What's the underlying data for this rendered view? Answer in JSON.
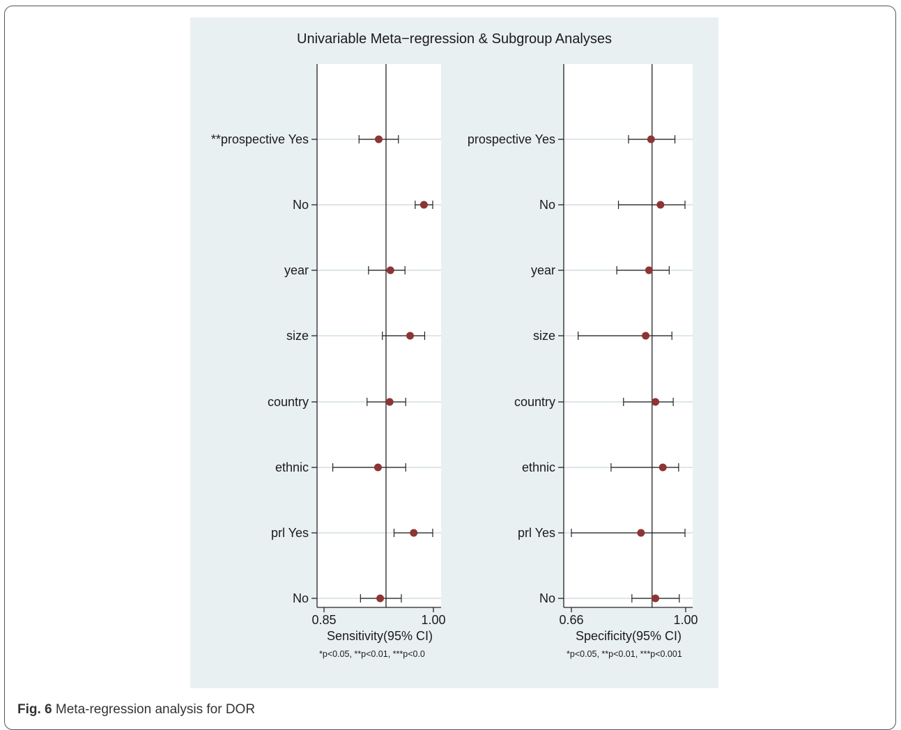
{
  "figure": {
    "caption_label": "Fig. 6",
    "caption_text": "Meta-regression analysis for DOR"
  },
  "chart_data": {
    "type": "scatter",
    "subtype": "forest",
    "title": "Univariable Meta−regression & Subgroup Analyses",
    "colors": {
      "background": "#e9f0f2",
      "marker": "#8d3434",
      "line": "#222222",
      "grid": "#dde6e9"
    },
    "panels": [
      {
        "xlabel": "Sensitivity(95% CI)",
        "xlim": [
          0.85,
          1.0
        ],
        "xticks": [
          "0.85",
          "1.00"
        ],
        "reference": 0.935,
        "footnote": "*p<0.05, **p<0.01, ***p<0.0",
        "rows": [
          {
            "label": "**prospective Yes",
            "est": 0.925,
            "lo": 0.898,
            "hi": 0.952
          },
          {
            "label": "No",
            "est": 0.987,
            "lo": 0.975,
            "hi": 0.999
          },
          {
            "label": "year",
            "est": 0.941,
            "lo": 0.911,
            "hi": 0.961
          },
          {
            "label": "size",
            "est": 0.968,
            "lo": 0.93,
            "hi": 0.988
          },
          {
            "label": "country",
            "est": 0.94,
            "lo": 0.909,
            "hi": 0.962
          },
          {
            "label": "ethnic",
            "est": 0.924,
            "lo": 0.862,
            "hi": 0.962
          },
          {
            "label": "prl Yes",
            "est": 0.973,
            "lo": 0.946,
            "hi": 0.999
          },
          {
            "label": "No",
            "est": 0.927,
            "lo": 0.9,
            "hi": 0.956
          }
        ]
      },
      {
        "xlabel": "Specificity(95% CI)",
        "xlim": [
          0.66,
          1.0
        ],
        "xticks": [
          "0.66",
          "1.00"
        ],
        "reference": 0.9,
        "footnote": "*p<0.05, **p<0.01, ***p<0.001",
        "rows": [
          {
            "label": "prospective Yes",
            "est": 0.897,
            "lo": 0.83,
            "hi": 0.968
          },
          {
            "label": "No",
            "est": 0.925,
            "lo": 0.8,
            "hi": 0.998
          },
          {
            "label": "year",
            "est": 0.891,
            "lo": 0.795,
            "hi": 0.951
          },
          {
            "label": "size",
            "est": 0.881,
            "lo": 0.68,
            "hi": 0.959
          },
          {
            "label": "country",
            "est": 0.91,
            "lo": 0.815,
            "hi": 0.963
          },
          {
            "label": "ethnic",
            "est": 0.932,
            "lo": 0.778,
            "hi": 0.979
          },
          {
            "label": "prl Yes",
            "est": 0.867,
            "lo": 0.66,
            "hi": 0.998
          },
          {
            "label": "No",
            "est": 0.91,
            "lo": 0.84,
            "hi": 0.981
          }
        ]
      }
    ]
  }
}
